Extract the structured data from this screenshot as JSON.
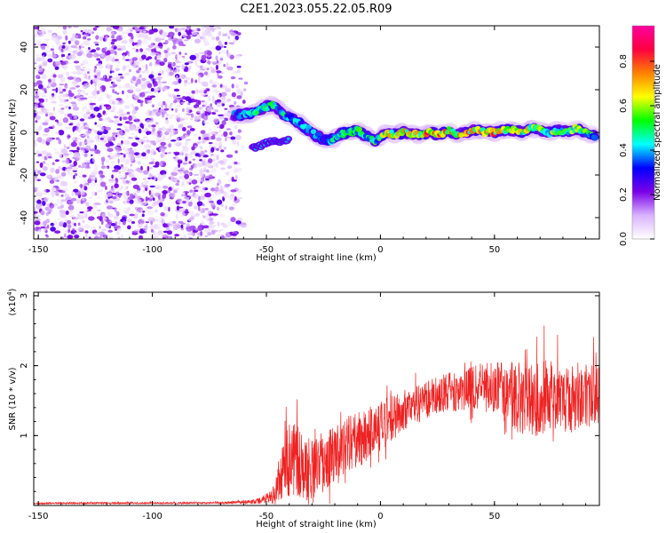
{
  "title": "C2E1.2023.055.22.05.R09",
  "chart_data": [
    {
      "type": "heatmap",
      "xlabel": "Height of straight line (km)",
      "ylabel": "Frequency (Hz)",
      "xlim": [
        -152,
        96
      ],
      "ylim": [
        -50,
        50
      ],
      "x_ticks": [
        -150,
        -100,
        -50,
        0,
        50
      ],
      "y_ticks": [
        -40,
        -20,
        0,
        20,
        40
      ],
      "colorbar": {
        "label": "Normalized spectral amplitude",
        "range": [
          0,
          0.96
        ],
        "ticks": [
          "0.0",
          "0.2",
          "0.4",
          "0.6",
          "0.8"
        ],
        "colors": [
          "#ffffff",
          "#d9b3ff",
          "#7a00e6",
          "#0000ff",
          "#00ffff",
          "#00ff00",
          "#ffff00",
          "#ff8000",
          "#ff0040",
          "#ff00a0"
        ]
      },
      "noise_region_x": [
        -152,
        -58
      ],
      "signal_track": {
        "x": [
          -64,
          -56,
          -50,
          -46,
          -42,
          -38,
          -34,
          -30,
          -26,
          -22,
          -18,
          -14,
          -10,
          -6,
          -2,
          2,
          6,
          10,
          14,
          18,
          22,
          26,
          30,
          34,
          38,
          42,
          46,
          50,
          54,
          58,
          62,
          66,
          70,
          74,
          78,
          82,
          86,
          90,
          94
        ],
        "freq": [
          8,
          9,
          12,
          13,
          8,
          6,
          3,
          0,
          -3,
          -4,
          -1,
          0,
          1,
          -2,
          -4,
          0,
          -1,
          0,
          -1,
          -1,
          0,
          -1,
          1,
          -1,
          0,
          1,
          0,
          0,
          1,
          1,
          0,
          2,
          1,
          0,
          1,
          0,
          2,
          0,
          -2
        ],
        "amp": [
          0.4,
          0.5,
          0.6,
          0.5,
          0.5,
          0.45,
          0.5,
          0.45,
          0.4,
          0.5,
          0.55,
          0.6,
          0.65,
          0.55,
          0.6,
          0.7,
          0.75,
          0.85,
          0.85,
          0.8,
          0.9,
          0.85,
          0.8,
          0.8,
          0.85,
          0.7,
          0.9,
          0.85,
          0.8,
          0.75,
          0.7,
          0.75,
          0.7,
          0.65,
          0.7,
          0.6,
          0.65,
          0.6,
          0.55
        ]
      },
      "lower_branch": {
        "x": [
          -56,
          -52,
          -48,
          -44,
          -40
        ],
        "freq": [
          -7,
          -6,
          -4,
          -5,
          -3
        ]
      }
    },
    {
      "type": "line",
      "xlabel": "Height of straight line (km)",
      "ylabel": "SNR (10 * v/v)",
      "y_multiplier": "(x10",
      "y_multiplier_exp": "4",
      "y_multiplier_close": ")",
      "xlim": [
        -152,
        96
      ],
      "ylim": [
        0,
        30500
      ],
      "x_ticks": [
        -150,
        -100,
        -50,
        0,
        50
      ],
      "y_ticks": [
        1,
        2,
        3
      ],
      "color": "#ee2222",
      "envelope": {
        "x": [
          -152,
          -70,
          -55,
          -48,
          -45,
          -42,
          -38,
          -34,
          -30,
          -26,
          -22,
          -18,
          -14,
          -10,
          -6,
          -2,
          2,
          6,
          10,
          14,
          18,
          22,
          26,
          30,
          34,
          38,
          42,
          46,
          50,
          54,
          58,
          62,
          66,
          70,
          74,
          78,
          82,
          86,
          90,
          94
        ],
        "mean": [
          300,
          350,
          500,
          1000,
          2500,
          5500,
          6500,
          5000,
          4500,
          5500,
          6500,
          7500,
          8500,
          9000,
          9500,
          10500,
          11500,
          12500,
          13500,
          14000,
          14500,
          15000,
          15500,
          16000,
          16000,
          16500,
          16500,
          17000,
          16500,
          16000,
          15500,
          15000,
          14500,
          15000,
          15500,
          15000,
          14500,
          15000,
          15500,
          15000
        ],
        "spread": [
          150,
          150,
          400,
          1200,
          3000,
          6000,
          7000,
          6000,
          5500,
          5500,
          5000,
          5000,
          5000,
          5000,
          4500,
          4500,
          4500,
          4000,
          4000,
          3500,
          3500,
          3500,
          3500,
          3500,
          3500,
          3500,
          4000,
          4500,
          5000,
          5500,
          6000,
          6500,
          7000,
          7000,
          6500,
          6000,
          6000,
          6000,
          6000,
          6000
        ]
      }
    }
  ]
}
